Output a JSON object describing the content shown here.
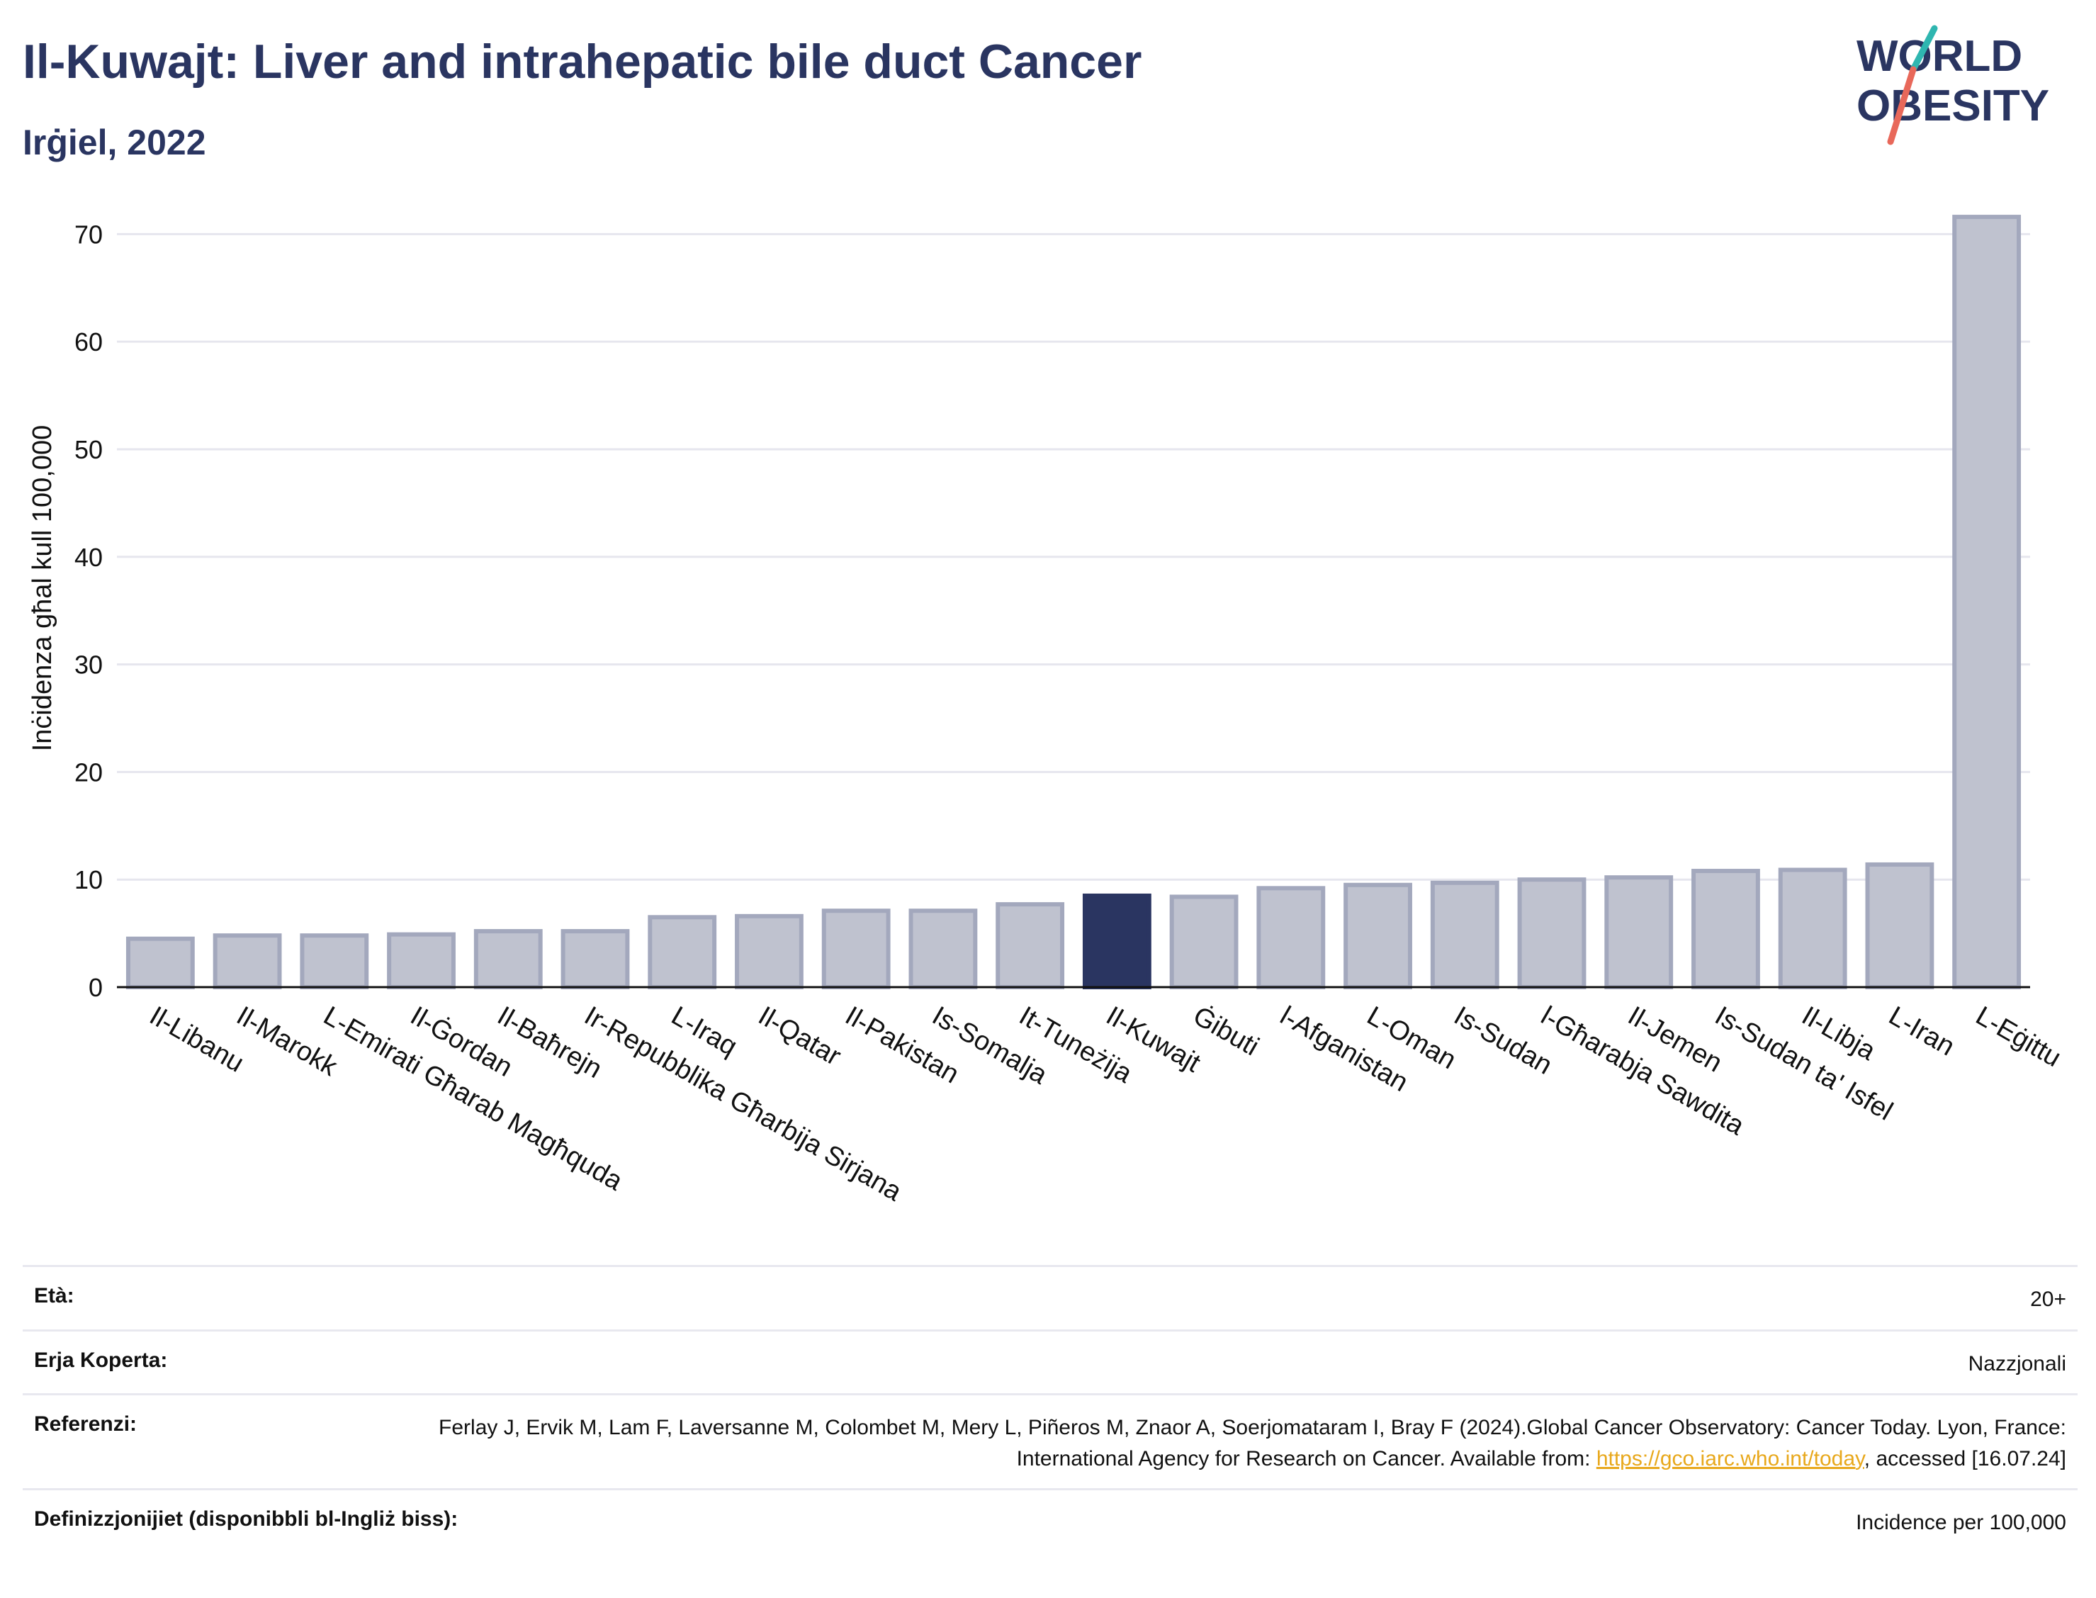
{
  "header": {
    "title": "Il-Kuwajt: Liver and intrahepatic bile duct Cancer",
    "subtitle": "Irġiel, 2022"
  },
  "logo": {
    "line1": "WORLD",
    "line2": "OBESITY",
    "accent_teal": "#2fb6b0",
    "accent_red": "#e8685a",
    "text_color": "#2a3561"
  },
  "colors": {
    "bar": "#bfc2cf",
    "bar_stroke": "#a3a8bd",
    "highlight": "#2a3561",
    "grid": "#e6e6ee",
    "axis": "#111111"
  },
  "chart_data": {
    "type": "bar",
    "title": "Il-Kuwajt: Liver and intrahepatic bile duct Cancer",
    "subtitle": "Irġiel, 2022",
    "ylabel": "Inċidenza għal kull 100,000",
    "xlabel": "",
    "ylim": [
      0,
      72
    ],
    "yticks": [
      0,
      10,
      20,
      30,
      40,
      50,
      60,
      70
    ],
    "grid": true,
    "highlight": "Il-Kuwajt",
    "categories": [
      "Il-Libanu",
      "Il-Marokk",
      "L-Emirati Għarab Magħquda",
      "Il-Ġordan",
      "Il-Baħrejn",
      "Ir-Repubblika Għarbija Sirjana",
      "L-Iraq",
      "Il-Qatar",
      "Il-Pakistan",
      "Is-Somalja",
      "It-Tuneżija",
      "Il-Kuwajt",
      "Ġibuti",
      "l-Afganistan",
      "L-Oman",
      "Is-Sudan",
      "l-Għarabja Sawdita",
      "Il-Jemen",
      "Is-Sudan ta' Isfel",
      "Il-Libja",
      "L-Iran",
      "L-Eġittu"
    ],
    "values": [
      4.5,
      4.8,
      4.8,
      4.9,
      5.2,
      5.2,
      6.5,
      6.6,
      7.1,
      7.1,
      7.7,
      8.5,
      8.4,
      9.2,
      9.5,
      9.7,
      10.0,
      10.2,
      10.8,
      10.9,
      11.4,
      71.6
    ]
  },
  "info": [
    {
      "label": "Età:",
      "value": "20+"
    },
    {
      "label": "Erja Koperta:",
      "value": "Nazzjonali"
    },
    {
      "label": "Referenzi:",
      "value_pre": "Ferlay J, Ervik M, Lam F, Laversanne M, Colombet M, Mery L, Piñeros M, Znaor A, Soerjomataram I, Bray F (2024).Global Cancer Observatory: Cancer Today. Lyon, France: International Agency for Research on Cancer. Available from: ",
      "link": "https://gco.iarc.who.int/today",
      "value_post": ", accessed [16.07.24]"
    },
    {
      "label": "Definizzjonijiet (disponibbli bl-Ingliż biss):",
      "value": "Incidence per 100,000"
    }
  ]
}
